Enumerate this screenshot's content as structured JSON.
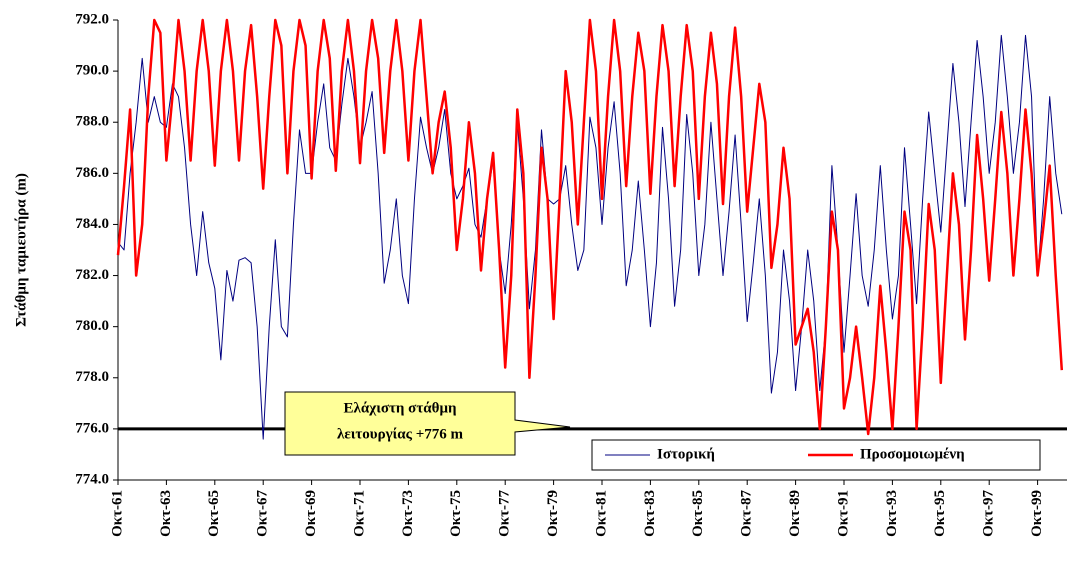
{
  "chart_data": {
    "type": "line",
    "y_label": "Στάθμη ταμιευτήρα (m)",
    "categories": [
      "Οκτ-61",
      null,
      null,
      null,
      null,
      null,
      null,
      null,
      "Οκτ-63",
      null,
      null,
      null,
      null,
      null,
      null,
      null,
      "Οκτ-65",
      null,
      null,
      null,
      null,
      null,
      null,
      null,
      "Οκτ-67",
      null,
      null,
      null,
      null,
      null,
      null,
      null,
      "Οκτ-69",
      null,
      null,
      null,
      null,
      null,
      null,
      null,
      "Οκτ-71",
      null,
      null,
      null,
      null,
      null,
      null,
      null,
      "Οκτ-73",
      null,
      null,
      null,
      null,
      null,
      null,
      null,
      "Οκτ-75",
      null,
      null,
      null,
      null,
      null,
      null,
      null,
      "Οκτ-77",
      null,
      null,
      null,
      null,
      null,
      null,
      null,
      "Οκτ-79",
      null,
      null,
      null,
      null,
      null,
      null,
      null,
      "Οκτ-81",
      null,
      null,
      null,
      null,
      null,
      null,
      null,
      "Οκτ-83",
      null,
      null,
      null,
      null,
      null,
      null,
      null,
      "Οκτ-85",
      null,
      null,
      null,
      null,
      null,
      null,
      null,
      "Οκτ-87",
      null,
      null,
      null,
      null,
      null,
      null,
      null,
      "Οκτ-89",
      null,
      null,
      null,
      null,
      null,
      null,
      null,
      "Οκτ-91",
      null,
      null,
      null,
      null,
      null,
      null,
      null,
      "Οκτ-93",
      null,
      null,
      null,
      null,
      null,
      null,
      null,
      "Οκτ-95",
      null,
      null,
      null,
      null,
      null,
      null,
      null,
      "Οκτ-97",
      null,
      null,
      null,
      null,
      null,
      null,
      null,
      "Οκτ-99",
      null,
      null,
      null,
      null
    ],
    "series": [
      {
        "name": "Ιστορική",
        "color": "#000080",
        "width": 1,
        "values": [
          783.3,
          783,
          786,
          788,
          790.5,
          788,
          789,
          788,
          787.8,
          789.5,
          789,
          787,
          784,
          782,
          784.5,
          782.5,
          781.5,
          778.7,
          782.2,
          781,
          782.6,
          782.7,
          782.5,
          780,
          775.6,
          780,
          783.4,
          780,
          779.6,
          784,
          787.7,
          786,
          786,
          788,
          789.5,
          787,
          786.5,
          788.7,
          790.5,
          789,
          787,
          788,
          789.2,
          786,
          781.7,
          783,
          785,
          782,
          780.9,
          785,
          788.2,
          787,
          786,
          787,
          788.5,
          786,
          785,
          785.5,
          786.2,
          784,
          783.5,
          785,
          786.5,
          783,
          781.3,
          784,
          788,
          785,
          780.7,
          783,
          787.7,
          785,
          784.8,
          785,
          786.3,
          784,
          782.2,
          783,
          788.2,
          787,
          784,
          787,
          788.8,
          786,
          781.6,
          783,
          785.7,
          783,
          780,
          782.5,
          787.8,
          785,
          780.8,
          783,
          788.3,
          786,
          782,
          784,
          788,
          785,
          782,
          784.5,
          787.5,
          784,
          780.2,
          782.5,
          785,
          782,
          777.4,
          779,
          783,
          781,
          777.5,
          780,
          783,
          781,
          777.5,
          780,
          786.3,
          783,
          779,
          782,
          785.2,
          782,
          780.8,
          783,
          786.3,
          783,
          780.3,
          782,
          787,
          784,
          780.9,
          785,
          788.4,
          786,
          783.7,
          787,
          790.3,
          788,
          784.7,
          788,
          791.2,
          789,
          786,
          788,
          791.4,
          789,
          786,
          788,
          791.4,
          789,
          782,
          785,
          789,
          786,
          784.4
        ]
      },
      {
        "name": "Προσομοιωμένη",
        "color": "#ff0000",
        "width": 2.5,
        "values": [
          782.8,
          785.5,
          788.5,
          782,
          784,
          789,
          792,
          791.5,
          786.5,
          789,
          792,
          790,
          786.5,
          790,
          792,
          790,
          786.3,
          790,
          792,
          790,
          786.5,
          790,
          791.8,
          789,
          785.4,
          789,
          792,
          791,
          786,
          790,
          792,
          791,
          785.8,
          790,
          792,
          790.5,
          786.1,
          790,
          792,
          790,
          786.4,
          790,
          792,
          790.5,
          786.8,
          790,
          792,
          790,
          786.5,
          790,
          792,
          789,
          786,
          788,
          789.2,
          787,
          783,
          785,
          788,
          786,
          782.2,
          785,
          786.8,
          783,
          778.4,
          782,
          788.5,
          786,
          778,
          782,
          787,
          785,
          780.3,
          785,
          790,
          788,
          784,
          788,
          792,
          790,
          785,
          789,
          792,
          790,
          785.5,
          789,
          791.5,
          790,
          785.2,
          789,
          791.8,
          790,
          785.5,
          789,
          791.8,
          790,
          785,
          789,
          791.5,
          789.5,
          784.8,
          789,
          791.7,
          789,
          784.5,
          787,
          789.5,
          788,
          782.3,
          784,
          787,
          785,
          779.3,
          780,
          780.7,
          779,
          776,
          780,
          784.5,
          783,
          776.8,
          778,
          780,
          778,
          775.8,
          778,
          781.6,
          779,
          776,
          780,
          784.5,
          783,
          776,
          780,
          784.8,
          783,
          777.8,
          782,
          786,
          784,
          779.5,
          783,
          787.5,
          785,
          781.8,
          785,
          788.4,
          786,
          782,
          785,
          788.5,
          786,
          782,
          784,
          786.3,
          782,
          778.3
        ]
      }
    ],
    "ylim": [
      774,
      792
    ],
    "yticks": [
      {
        "value": 774,
        "label": "774.0"
      },
      {
        "value": 776,
        "label": "776.0"
      },
      {
        "value": 778,
        "label": "778.0"
      },
      {
        "value": 780,
        "label": "780.0"
      },
      {
        "value": 782,
        "label": "782.0"
      },
      {
        "value": 784,
        "label": "784.0"
      },
      {
        "value": 786,
        "label": "786.0"
      },
      {
        "value": 788,
        "label": "788.0"
      },
      {
        "value": 790,
        "label": "790.0"
      },
      {
        "value": 792,
        "label": "792.0"
      }
    ],
    "threshold": {
      "value": 776,
      "label": [
        "Ελάχιστη στάθμη",
        "λειτουργίας +776 m"
      ]
    },
    "legend": "lower right"
  }
}
